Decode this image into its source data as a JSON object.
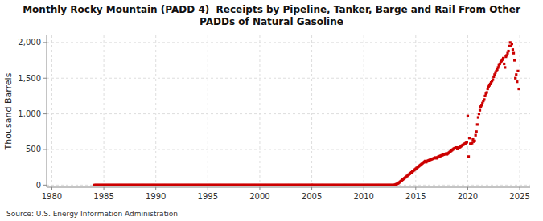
{
  "chart_data": {
    "type": "scatter",
    "title": "Monthly Rocky Mountain (PADD 4)  Receipts by Pipeline, Tanker, Barge and Rail From Other\nPADDs of Natural Gasoline",
    "ylabel": "Thousand Barrels",
    "annotations": [
      "Source: U.S. Energy Information Administration"
    ],
    "color": "#cc0000",
    "marker": "square",
    "grid": true,
    "xlim": [
      1979.5,
      2026.0
    ],
    "ylim": [
      -30,
      2100
    ],
    "xticks": [
      1980,
      1985,
      1990,
      1995,
      2000,
      2005,
      2010,
      2015,
      2020,
      2025
    ],
    "yticks": [
      0,
      500,
      {
        "value": 1000,
        "label": "1,000"
      },
      {
        "value": 1500,
        "label": "1,500"
      },
      {
        "value": 2000,
        "label": "2,000"
      }
    ],
    "x": [
      1984.083,
      1984.167,
      1984.25,
      1984.333,
      1984.417,
      1984.5,
      1984.583,
      1984.667,
      1984.75,
      1984.833,
      1984.917,
      1985.0,
      1985.083,
      1985.167,
      1985.25,
      1985.333,
      1985.417,
      1985.5,
      1985.583,
      1985.667,
      1985.75,
      1985.833,
      1985.917,
      1986.0,
      1986.083,
      1986.167,
      1986.25,
      1986.333,
      1986.417,
      1986.5,
      1986.583,
      1986.667,
      1986.75,
      1986.833,
      1986.917,
      1987.0,
      1987.083,
      1987.167,
      1987.25,
      1987.333,
      1987.417,
      1987.5,
      1987.583,
      1987.667,
      1987.75,
      1987.833,
      1987.917,
      1988.0,
      1988.083,
      1988.167,
      1988.25,
      1988.333,
      1988.417,
      1988.5,
      1988.583,
      1988.667,
      1988.75,
      1988.833,
      1988.917,
      1989.0,
      1989.083,
      1989.167,
      1989.25,
      1989.333,
      1989.417,
      1989.5,
      1989.583,
      1989.667,
      1989.75,
      1989.833,
      1989.917,
      1990.0,
      1990.083,
      1990.167,
      1990.25,
      1990.333,
      1990.417,
      1990.5,
      1990.583,
      1990.667,
      1990.75,
      1990.833,
      1990.917,
      1991.0,
      1991.083,
      1991.167,
      1991.25,
      1991.333,
      1991.417,
      1991.5,
      1991.583,
      1991.667,
      1991.75,
      1991.833,
      1991.917,
      1992.0,
      1992.083,
      1992.167,
      1992.25,
      1992.333,
      1992.417,
      1992.5,
      1992.583,
      1992.667,
      1992.75,
      1992.833,
      1992.917,
      1993.0,
      1993.083,
      1993.167,
      1993.25,
      1993.333,
      1993.417,
      1993.5,
      1993.583,
      1993.667,
      1993.75,
      1993.833,
      1993.917,
      1994.0,
      1994.083,
      1994.167,
      1994.25,
      1994.333,
      1994.417,
      1994.5,
      1994.583,
      1994.667,
      1994.75,
      1994.833,
      1994.917,
      1995.0,
      1995.083,
      1995.167,
      1995.25,
      1995.333,
      1995.417,
      1995.5,
      1995.583,
      1995.667,
      1995.75,
      1995.833,
      1995.917,
      1996.0,
      1996.083,
      1996.167,
      1996.25,
      1996.333,
      1996.417,
      1996.5,
      1996.583,
      1996.667,
      1996.75,
      1996.833,
      1996.917,
      1997.0,
      1997.083,
      1997.167,
      1997.25,
      1997.333,
      1997.417,
      1997.5,
      1997.583,
      1997.667,
      1997.75,
      1997.833,
      1997.917,
      1998.0,
      1998.083,
      1998.167,
      1998.25,
      1998.333,
      1998.417,
      1998.5,
      1998.583,
      1998.667,
      1998.75,
      1998.833,
      1998.917,
      1999.0,
      1999.083,
      1999.167,
      1999.25,
      1999.333,
      1999.417,
      1999.5,
      1999.583,
      1999.667,
      1999.75,
      1999.833,
      1999.917,
      2000.0,
      2000.083,
      2000.167,
      2000.25,
      2000.333,
      2000.417,
      2000.5,
      2000.583,
      2000.667,
      2000.75,
      2000.833,
      2000.917,
      2001.0,
      2001.083,
      2001.167,
      2001.25,
      2001.333,
      2001.417,
      2001.5,
      2001.583,
      2001.667,
      2001.75,
      2001.833,
      2001.917,
      2002.0,
      2002.083,
      2002.167,
      2002.25,
      2002.333,
      2002.417,
      2002.5,
      2002.583,
      2002.667,
      2002.75,
      2002.833,
      2002.917,
      2003.0,
      2003.083,
      2003.167,
      2003.25,
      2003.333,
      2003.417,
      2003.5,
      2003.583,
      2003.667,
      2003.75,
      2003.833,
      2003.917,
      2004.0,
      2004.083,
      2004.167,
      2004.25,
      2004.333,
      2004.417,
      2004.5,
      2004.583,
      2004.667,
      2004.75,
      2004.833,
      2004.917,
      2005.0,
      2005.083,
      2005.167,
      2005.25,
      2005.333,
      2005.417,
      2005.5,
      2005.583,
      2005.667,
      2005.75,
      2005.833,
      2005.917,
      2006.0,
      2006.083,
      2006.167,
      2006.25,
      2006.333,
      2006.417,
      2006.5,
      2006.583,
      2006.667,
      2006.75,
      2006.833,
      2006.917,
      2007.0,
      2007.083,
      2007.167,
      2007.25,
      2007.333,
      2007.417,
      2007.5,
      2007.583,
      2007.667,
      2007.75,
      2007.833,
      2007.917,
      2008.0,
      2008.083,
      2008.167,
      2008.25,
      2008.333,
      2008.417,
      2008.5,
      2008.583,
      2008.667,
      2008.75,
      2008.833,
      2008.917,
      2009.0,
      2009.083,
      2009.167,
      2009.25,
      2009.333,
      2009.417,
      2009.5,
      2009.583,
      2009.667,
      2009.75,
      2009.833,
      2009.917,
      2010.0,
      2010.083,
      2010.167,
      2010.25,
      2010.333,
      2010.417,
      2010.5,
      2010.583,
      2010.667,
      2010.75,
      2010.833,
      2010.917,
      2011.0,
      2011.083,
      2011.167,
      2011.25,
      2011.333,
      2011.417,
      2011.5,
      2011.583,
      2011.667,
      2011.75,
      2011.833,
      2011.917,
      2012.0,
      2012.083,
      2012.167,
      2012.25,
      2012.333,
      2012.417,
      2012.5,
      2012.583,
      2012.667,
      2012.75,
      2012.833,
      2012.917,
      2013.0,
      2013.083,
      2013.167,
      2013.25,
      2013.333,
      2013.417,
      2013.5,
      2013.583,
      2013.667,
      2013.75,
      2013.833,
      2013.917,
      2014.0,
      2014.083,
      2014.167,
      2014.25,
      2014.333,
      2014.417,
      2014.5,
      2014.583,
      2014.667,
      2014.75,
      2014.833,
      2014.917,
      2015.0,
      2015.083,
      2015.167,
      2015.25,
      2015.333,
      2015.417,
      2015.5,
      2015.583,
      2015.667,
      2015.75,
      2015.833,
      2015.917,
      2016.0,
      2016.083,
      2016.167,
      2016.25,
      2016.333,
      2016.417,
      2016.5,
      2016.583,
      2016.667,
      2016.75,
      2016.833,
      2016.917,
      2017.0,
      2017.083,
      2017.167,
      2017.25,
      2017.333,
      2017.417,
      2017.5,
      2017.583,
      2017.667,
      2017.75,
      2017.833,
      2017.917,
      2018.0,
      2018.083,
      2018.167,
      2018.25,
      2018.333,
      2018.417,
      2018.5,
      2018.583,
      2018.667,
      2018.75,
      2018.833,
      2018.917,
      2019.0,
      2019.083,
      2019.167,
      2019.25,
      2019.333,
      2019.417,
      2019.5,
      2019.583,
      2019.667,
      2019.75,
      2019.833,
      2019.917,
      2020.0,
      2020.083,
      2020.167,
      2020.25,
      2020.333,
      2020.417,
      2020.5,
      2020.583,
      2020.667,
      2020.75,
      2020.833,
      2020.917,
      2021.0,
      2021.083,
      2021.167,
      2021.25,
      2021.333,
      2021.417,
      2021.5,
      2021.583,
      2021.667,
      2021.75,
      2021.833,
      2021.917,
      2022.0,
      2022.083,
      2022.167,
      2022.25,
      2022.333,
      2022.417,
      2022.5,
      2022.583,
      2022.667,
      2022.75,
      2022.833,
      2022.917,
      2023.0,
      2023.083,
      2023.167,
      2023.25,
      2023.333,
      2023.417,
      2023.5,
      2023.583,
      2023.667,
      2023.75,
      2023.833,
      2023.917,
      2024.0,
      2024.083,
      2024.167,
      2024.25,
      2024.333,
      2024.417,
      2024.5,
      2024.583,
      2024.667,
      2024.75,
      2024.833,
      2024.917
    ],
    "values": [
      0,
      0,
      0,
      0,
      0,
      0,
      0,
      0,
      0,
      0,
      0,
      0,
      0,
      0,
      0,
      0,
      0,
      0,
      0,
      0,
      0,
      0,
      0,
      0,
      0,
      0,
      0,
      0,
      0,
      0,
      0,
      0,
      0,
      0,
      0,
      0,
      0,
      0,
      0,
      0,
      0,
      0,
      0,
      0,
      0,
      0,
      0,
      0,
      0,
      0,
      0,
      0,
      0,
      0,
      0,
      0,
      0,
      0,
      0,
      0,
      0,
      0,
      0,
      0,
      0,
      0,
      0,
      0,
      0,
      0,
      0,
      0,
      0,
      0,
      0,
      0,
      0,
      0,
      0,
      0,
      0,
      0,
      0,
      0,
      0,
      0,
      0,
      0,
      0,
      0,
      0,
      0,
      0,
      0,
      0,
      0,
      0,
      0,
      0,
      0,
      0,
      0,
      0,
      0,
      0,
      0,
      0,
      0,
      0,
      0,
      0,
      0,
      0,
      0,
      0,
      0,
      0,
      0,
      0,
      0,
      0,
      0,
      0,
      0,
      0,
      0,
      0,
      0,
      0,
      0,
      0,
      0,
      0,
      0,
      0,
      0,
      0,
      0,
      0,
      0,
      0,
      0,
      0,
      0,
      0,
      0,
      0,
      0,
      0,
      0,
      0,
      0,
      0,
      0,
      0,
      0,
      0,
      0,
      0,
      0,
      0,
      0,
      0,
      0,
      0,
      0,
      0,
      0,
      0,
      0,
      0,
      0,
      0,
      0,
      0,
      0,
      0,
      0,
      0,
      0,
      0,
      0,
      0,
      0,
      0,
      0,
      0,
      0,
      0,
      0,
      0,
      0,
      0,
      0,
      0,
      0,
      0,
      0,
      0,
      0,
      0,
      0,
      0,
      0,
      0,
      0,
      0,
      0,
      0,
      0,
      0,
      0,
      0,
      0,
      0,
      0,
      0,
      0,
      0,
      0,
      0,
      0,
      0,
      0,
      0,
      0,
      0,
      0,
      0,
      0,
      0,
      0,
      0,
      0,
      0,
      0,
      0,
      0,
      0,
      0,
      0,
      0,
      0,
      0,
      0,
      0,
      0,
      0,
      0,
      0,
      0,
      2,
      0,
      0,
      0,
      0,
      0,
      0,
      0,
      0,
      0,
      0,
      0,
      0,
      0,
      0,
      0,
      0,
      0,
      0,
      0,
      0,
      0,
      0,
      0,
      0,
      0,
      0,
      0,
      0,
      0,
      0,
      0,
      0,
      0,
      0,
      0,
      0,
      0,
      0,
      0,
      0,
      0,
      0,
      0,
      0,
      0,
      0,
      0,
      0,
      0,
      0,
      0,
      0,
      0,
      0,
      0,
      0,
      0,
      0,
      0,
      0,
      0,
      0,
      0,
      0,
      0,
      0,
      0,
      0,
      0,
      0,
      0,
      0,
      0,
      0,
      0,
      0,
      0,
      0,
      0,
      0,
      0,
      0,
      0,
      0,
      0,
      0,
      0,
      0,
      0,
      0,
      0,
      0,
      0,
      0,
      0,
      5,
      10,
      15,
      20,
      28,
      38,
      48,
      58,
      68,
      78,
      88,
      98,
      108,
      118,
      128,
      138,
      148,
      158,
      168,
      178,
      188,
      198,
      208,
      218,
      228,
      238,
      248,
      258,
      268,
      278,
      288,
      298,
      308,
      318,
      328,
      338,
      322,
      332,
      342,
      347,
      352,
      357,
      362,
      367,
      372,
      377,
      382,
      387,
      377,
      387,
      397,
      402,
      407,
      412,
      417,
      422,
      427,
      432,
      437,
      442,
      432,
      442,
      452,
      462,
      472,
      482,
      492,
      502,
      512,
      517,
      522,
      527,
      507,
      517,
      527,
      532,
      542,
      552,
      562,
      567,
      577,
      582,
      592,
      602,
      970,
      400,
      660,
      580,
      580,
      590,
      640,
      610,
      620,
      700,
      750,
      850,
      950,
      1000,
      1050,
      1100,
      1120,
      1150,
      1180,
      1200,
      1250,
      1280,
      1300,
      1350,
      1380,
      1400,
      1420,
      1440,
      1460,
      1480,
      1520,
      1550,
      1580,
      1600,
      1620,
      1650,
      1680,
      1700,
      1720,
      1740,
      1760,
      1780,
      1700,
      1650,
      1800,
      1820,
      1850,
      1880,
      1950,
      2000,
      1950,
      1980,
      1900,
      1850,
      1750,
      1500,
      1550,
      1450,
      1600,
      1350
    ]
  }
}
